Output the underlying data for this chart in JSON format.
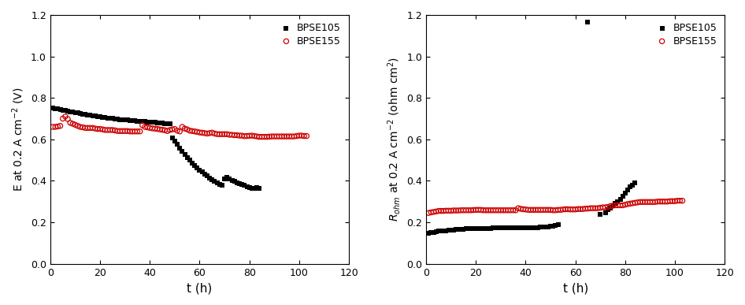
{
  "left_bpse105_t": [
    1,
    2,
    3,
    4,
    5,
    6,
    7,
    8,
    9,
    10,
    11,
    12,
    13,
    14,
    15,
    16,
    17,
    18,
    19,
    20,
    21,
    22,
    23,
    24,
    25,
    26,
    27,
    28,
    29,
    30,
    31,
    32,
    33,
    34,
    35,
    36,
    37,
    38,
    39,
    40,
    41,
    42,
    43,
    44,
    45,
    46,
    47,
    48,
    49,
    50,
    51,
    52,
    53,
    54,
    55,
    56,
    57,
    58,
    59,
    60,
    61,
    62,
    63,
    64,
    65,
    66,
    67,
    68,
    69,
    70,
    71,
    72,
    73,
    74,
    75,
    76,
    77,
    78,
    79,
    80,
    81,
    82,
    83,
    84
  ],
  "left_bpse105_e": [
    0.753,
    0.749,
    0.746,
    0.743,
    0.741,
    0.738,
    0.736,
    0.734,
    0.731,
    0.729,
    0.727,
    0.725,
    0.722,
    0.72,
    0.718,
    0.716,
    0.714,
    0.712,
    0.71,
    0.708,
    0.707,
    0.705,
    0.703,
    0.702,
    0.701,
    0.699,
    0.697,
    0.696,
    0.695,
    0.694,
    0.693,
    0.692,
    0.691,
    0.69,
    0.688,
    0.687,
    0.686,
    0.685,
    0.684,
    0.683,
    0.682,
    0.681,
    0.68,
    0.679,
    0.678,
    0.677,
    0.675,
    0.674,
    0.607,
    0.592,
    0.575,
    0.558,
    0.542,
    0.527,
    0.513,
    0.499,
    0.486,
    0.474,
    0.462,
    0.452,
    0.442,
    0.432,
    0.423,
    0.414,
    0.406,
    0.398,
    0.391,
    0.384,
    0.377,
    0.411,
    0.415,
    0.409,
    0.403,
    0.397,
    0.392,
    0.387,
    0.382,
    0.377,
    0.373,
    0.368,
    0.365,
    0.362,
    0.368,
    0.365
  ],
  "left_bpse155_t": [
    1,
    2,
    3,
    4,
    5,
    6,
    7,
    8,
    9,
    10,
    11,
    12,
    13,
    14,
    15,
    16,
    17,
    18,
    19,
    20,
    21,
    22,
    23,
    24,
    25,
    26,
    27,
    28,
    29,
    30,
    31,
    32,
    33,
    34,
    35,
    36,
    37,
    38,
    39,
    40,
    41,
    42,
    43,
    44,
    45,
    46,
    47,
    48,
    49,
    50,
    51,
    52,
    53,
    54,
    55,
    56,
    57,
    58,
    59,
    60,
    61,
    62,
    63,
    64,
    65,
    66,
    67,
    68,
    69,
    70,
    71,
    72,
    73,
    74,
    75,
    76,
    77,
    78,
    79,
    80,
    81,
    82,
    83,
    84,
    85,
    86,
    87,
    88,
    89,
    90,
    91,
    92,
    93,
    94,
    95,
    96,
    97,
    98,
    99,
    100,
    101,
    102,
    103
  ],
  "left_bpse155_e": [
    0.66,
    0.66,
    0.662,
    0.665,
    0.7,
    0.71,
    0.698,
    0.68,
    0.675,
    0.67,
    0.665,
    0.66,
    0.658,
    0.655,
    0.655,
    0.655,
    0.655,
    0.652,
    0.65,
    0.65,
    0.648,
    0.645,
    0.645,
    0.645,
    0.645,
    0.643,
    0.64,
    0.64,
    0.64,
    0.64,
    0.64,
    0.638,
    0.638,
    0.638,
    0.638,
    0.638,
    0.668,
    0.66,
    0.658,
    0.655,
    0.653,
    0.652,
    0.65,
    0.648,
    0.646,
    0.644,
    0.64,
    0.645,
    0.648,
    0.65,
    0.642,
    0.638,
    0.66,
    0.652,
    0.648,
    0.642,
    0.64,
    0.638,
    0.636,
    0.633,
    0.632,
    0.63,
    0.628,
    0.63,
    0.632,
    0.628,
    0.625,
    0.625,
    0.625,
    0.625,
    0.625,
    0.622,
    0.622,
    0.62,
    0.62,
    0.618,
    0.618,
    0.615,
    0.616,
    0.617,
    0.618,
    0.616,
    0.614,
    0.612,
    0.612,
    0.612,
    0.612,
    0.613,
    0.614,
    0.614,
    0.614,
    0.614,
    0.614,
    0.614,
    0.614,
    0.614,
    0.614,
    0.614,
    0.616,
    0.618,
    0.618,
    0.616,
    0.616
  ],
  "right_bpse105_t": [
    1,
    2,
    3,
    4,
    5,
    6,
    7,
    8,
    9,
    10,
    11,
    12,
    13,
    14,
    15,
    16,
    17,
    18,
    19,
    20,
    21,
    22,
    23,
    24,
    25,
    26,
    27,
    28,
    29,
    30,
    31,
    32,
    33,
    34,
    35,
    36,
    37,
    38,
    39,
    40,
    41,
    42,
    43,
    44,
    45,
    46,
    47,
    48,
    49,
    50,
    51,
    52,
    53,
    65,
    70,
    72,
    73,
    74,
    75,
    76,
    77,
    78,
    79,
    80,
    81,
    82,
    83,
    84
  ],
  "right_bpse105_r": [
    0.148,
    0.15,
    0.152,
    0.155,
    0.158,
    0.16,
    0.158,
    0.16,
    0.162,
    0.163,
    0.164,
    0.165,
    0.166,
    0.167,
    0.167,
    0.168,
    0.168,
    0.169,
    0.168,
    0.169,
    0.17,
    0.17,
    0.17,
    0.171,
    0.171,
    0.171,
    0.172,
    0.172,
    0.172,
    0.172,
    0.173,
    0.173,
    0.173,
    0.173,
    0.173,
    0.174,
    0.174,
    0.174,
    0.175,
    0.175,
    0.175,
    0.175,
    0.175,
    0.175,
    0.175,
    0.176,
    0.176,
    0.176,
    0.178,
    0.18,
    0.182,
    0.185,
    0.188,
    1.165,
    0.24,
    0.245,
    0.26,
    0.27,
    0.28,
    0.29,
    0.3,
    0.31,
    0.325,
    0.34,
    0.355,
    0.37,
    0.38,
    0.39
  ],
  "right_bpse155_t": [
    1,
    2,
    3,
    4,
    5,
    6,
    7,
    8,
    9,
    10,
    11,
    12,
    13,
    14,
    15,
    16,
    17,
    18,
    19,
    20,
    21,
    22,
    23,
    24,
    25,
    26,
    27,
    28,
    29,
    30,
    31,
    32,
    33,
    34,
    35,
    36,
    37,
    38,
    39,
    40,
    41,
    42,
    43,
    44,
    45,
    46,
    47,
    48,
    49,
    50,
    51,
    52,
    53,
    54,
    55,
    56,
    57,
    58,
    59,
    60,
    61,
    62,
    63,
    64,
    65,
    66,
    67,
    68,
    69,
    70,
    71,
    72,
    73,
    74,
    75,
    76,
    77,
    78,
    79,
    80,
    81,
    82,
    83,
    84,
    85,
    86,
    87,
    88,
    89,
    90,
    91,
    92,
    93,
    94,
    95,
    96,
    97,
    98,
    99,
    100,
    101,
    102,
    103
  ],
  "right_bpse155_r": [
    0.245,
    0.248,
    0.25,
    0.252,
    0.255,
    0.255,
    0.255,
    0.256,
    0.256,
    0.256,
    0.257,
    0.257,
    0.257,
    0.258,
    0.258,
    0.258,
    0.258,
    0.258,
    0.259,
    0.26,
    0.26,
    0.26,
    0.258,
    0.258,
    0.258,
    0.258,
    0.258,
    0.258,
    0.258,
    0.258,
    0.258,
    0.258,
    0.258,
    0.258,
    0.258,
    0.258,
    0.268,
    0.265,
    0.263,
    0.262,
    0.26,
    0.26,
    0.26,
    0.26,
    0.26,
    0.26,
    0.26,
    0.26,
    0.26,
    0.26,
    0.258,
    0.258,
    0.26,
    0.26,
    0.262,
    0.263,
    0.263,
    0.262,
    0.262,
    0.262,
    0.264,
    0.264,
    0.264,
    0.266,
    0.266,
    0.268,
    0.268,
    0.268,
    0.268,
    0.27,
    0.272,
    0.272,
    0.274,
    0.278,
    0.28,
    0.282,
    0.282,
    0.282,
    0.282,
    0.285,
    0.288,
    0.29,
    0.292,
    0.294,
    0.296,
    0.298,
    0.298,
    0.298,
    0.298,
    0.298,
    0.298,
    0.298,
    0.3,
    0.3,
    0.3,
    0.3,
    0.3,
    0.302,
    0.302,
    0.302,
    0.304,
    0.304,
    0.304
  ],
  "ylim_left": [
    0.0,
    1.2
  ],
  "ylim_right": [
    0.0,
    1.2
  ],
  "xlim": [
    0,
    120
  ],
  "xticks": [
    0,
    20,
    40,
    60,
    80,
    100,
    120
  ],
  "yticks": [
    0.0,
    0.2,
    0.4,
    0.6,
    0.8,
    1.0,
    1.2
  ],
  "xlabel": "t (h)",
  "legend_bpse105": "BPSE105",
  "legend_bpse155": "BPSE155",
  "color_bpse105": "#000000",
  "color_bpse155": "#cc0000",
  "marker_bpse105": "s",
  "marker_bpse155": "o",
  "markersize_sq": 14,
  "markersize_circ": 20,
  "linewidth_circ": 0.9,
  "background_color": "#ffffff"
}
